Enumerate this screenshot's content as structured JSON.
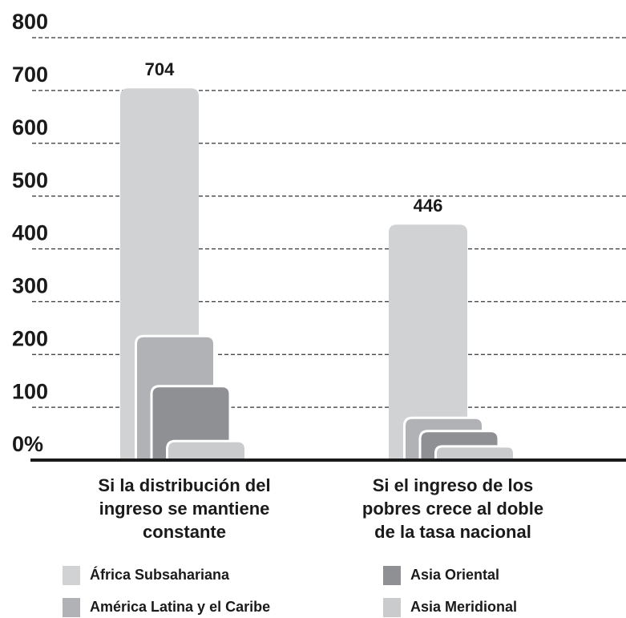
{
  "chart_data": {
    "type": "bar",
    "categories": [
      "Si la distribución del ingreso se mantiene constante",
      "Si el ingreso de los pobres crece al doble de la tasa nacional"
    ],
    "series": [
      {
        "name": "África Subsahariana",
        "color": "#d1d2d4",
        "values": [
          704,
          446
        ]
      },
      {
        "name": "América Latina y el Caribe",
        "color": "#b1b2b5",
        "values": [
          235,
          80
        ]
      },
      {
        "name": "Asia Oriental",
        "color": "#8f9093",
        "values": [
          140,
          55
        ]
      },
      {
        "name": "Asia Meridional",
        "color": "#cacbcd",
        "values": [
          36,
          26
        ]
      }
    ],
    "ylim": [
      0,
      800
    ],
    "yticks": [
      {
        "value": 0,
        "label": "0%"
      },
      100,
      200,
      300,
      400,
      500,
      600,
      700,
      800
    ],
    "grid": true
  }
}
